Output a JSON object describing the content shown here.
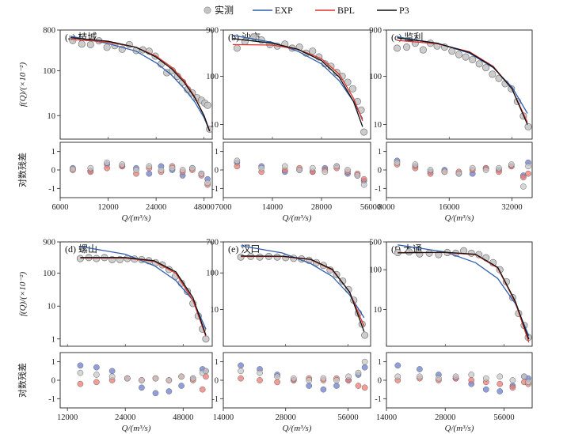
{
  "legend": {
    "items": [
      {
        "label": "实测",
        "color": "#b9b9b9",
        "kind": "marker"
      },
      {
        "label": "EXP",
        "color": "#2f5fae",
        "kind": "line"
      },
      {
        "label": "BPL",
        "color": "#e0302a",
        "kind": "line"
      },
      {
        "label": "P3",
        "color": "#111111",
        "kind": "line"
      }
    ]
  },
  "axis_labels": {
    "top_ylabel": "f(Q)/(×10⁻²)",
    "bottom_ylabel": "对数残差",
    "xlabel": "Q/(m³/s)"
  },
  "colors": {
    "observed": "#c4c4c4",
    "exp": "#2f5fae",
    "bpl": "#e0302a",
    "p3": "#111111",
    "resid_exp": "#6b7fcf",
    "resid_bpl": "#ef7a72",
    "resid_p3": "#c8c8c8"
  },
  "chart_data": [
    {
      "type": "scatter",
      "title": "(a) 枝城",
      "x_ticks": [
        "6000",
        "12000",
        "24000",
        "48000"
      ],
      "y_ticks": [
        "800",
        "100",
        "10"
      ],
      "resid_ticks": [
        "1",
        "0",
        "-1"
      ],
      "xlim": [
        6000,
        54000
      ],
      "ylim": [
        3,
        800
      ],
      "resid_ylim": [
        -1.5,
        1.5
      ],
      "observed": {
        "x": [
          7200,
          8200,
          9300,
          10500,
          11800,
          13200,
          14700,
          16300,
          18000,
          19800,
          21700,
          23700,
          25800,
          28000,
          30300,
          32700,
          35200,
          37800,
          40500,
          43300,
          46200,
          48500,
          50500,
          52000
        ],
        "y": [
          470,
          390,
          380,
          460,
          330,
          360,
          300,
          380,
          280,
          290,
          270,
          210,
          140,
          90,
          100,
          75,
          55,
          38,
          32,
          25,
          22,
          19,
          17,
          5
        ]
      },
      "fits": {
        "EXP": {
          "x": [
            7000,
            12000,
            18000,
            24000,
            30000,
            36000,
            42000,
            48000,
            52000
          ],
          "y": [
            580,
            400,
            270,
            150,
            80,
            40,
            20,
            9,
            4.5
          ]
        },
        "BPL": {
          "x": [
            7000,
            12000,
            18000,
            24000,
            30000,
            36000,
            42000,
            48000,
            52000
          ],
          "y": [
            500,
            430,
            330,
            210,
            120,
            60,
            26,
            10,
            4.6
          ]
        },
        "P3": {
          "x": [
            7000,
            12000,
            18000,
            24000,
            30000,
            36000,
            42000,
            48000,
            52000
          ],
          "y": [
            540,
            450,
            330,
            200,
            110,
            55,
            25,
            10,
            4.5
          ]
        }
      },
      "residuals": {
        "x": [
          7200,
          9300,
          11800,
          14700,
          18000,
          21700,
          25800,
          30300,
          35200,
          40500,
          46200,
          50500
        ],
        "EXP": [
          0.1,
          -0.05,
          0.3,
          0.2,
          0.1,
          -0.2,
          0.2,
          0.0,
          -0.3,
          0.1,
          -0.2,
          -0.5
        ],
        "BPL": [
          0.0,
          -0.1,
          0.1,
          0.2,
          -0.2,
          0.1,
          -0.1,
          0.2,
          -0.1,
          0.0,
          -0.3,
          -0.8
        ],
        "P3": [
          0.05,
          0.1,
          0.4,
          0.3,
          0.0,
          0.2,
          0.0,
          0.1,
          0.0,
          0.1,
          -0.2,
          -0.7
        ]
      }
    },
    {
      "type": "scatter",
      "title": "(b) 沙市",
      "x_ticks": [
        "7000",
        "14000",
        "28000",
        "56000"
      ],
      "y_ticks": [
        "900",
        "100",
        "10"
      ],
      "resid_ticks": [
        "1",
        "0",
        "-1"
      ],
      "xlim": [
        7000,
        56000
      ],
      "ylim": [
        5,
        900
      ],
      "resid_ylim": [
        -1.5,
        1.5
      ],
      "observed": {
        "x": [
          8500,
          9500,
          10800,
          12000,
          13500,
          15000,
          16700,
          18500,
          20500,
          22500,
          24700,
          27000,
          29400,
          32000,
          34700,
          37500,
          40500,
          43500,
          46500,
          49000,
          51000
        ],
        "y": [
          380,
          520,
          650,
          560,
          450,
          420,
          460,
          380,
          400,
          300,
          330,
          250,
          180,
          160,
          120,
          100,
          75,
          55,
          30,
          20,
          7
        ]
      },
      "fits": {
        "EXP": {
          "x": [
            8000,
            14000,
            20000,
            28000,
            36000,
            44000,
            50000
          ],
          "y": [
            700,
            500,
            330,
            180,
            80,
            30,
            13
          ]
        },
        "BPL": {
          "x": [
            8000,
            14000,
            20000,
            28000,
            36000,
            44000,
            50000
          ],
          "y": [
            450,
            440,
            360,
            230,
            110,
            35,
            12
          ]
        },
        "P3": {
          "x": [
            8000,
            14000,
            20000,
            28000,
            36000,
            44000,
            50000
          ],
          "y": [
            600,
            480,
            360,
            210,
            95,
            30,
            9
          ]
        }
      },
      "residuals": {
        "x": [
          8500,
          12000,
          16700,
          20500,
          24700,
          29400,
          34700,
          40500,
          46500,
          51000
        ],
        "EXP": [
          0.4,
          0.2,
          -0.1,
          0.0,
          -0.1,
          0.1,
          0.2,
          -0.2,
          -0.3,
          -0.6
        ],
        "BPL": [
          0.2,
          -0.1,
          0.0,
          0.1,
          -0.1,
          0.0,
          0.1,
          -0.1,
          -0.2,
          -0.5
        ],
        "P3": [
          0.5,
          0.1,
          0.2,
          0.0,
          0.1,
          -0.1,
          0.2,
          0.0,
          -0.3,
          -0.8
        ]
      }
    },
    {
      "type": "scatter",
      "title": "(c) 监利",
      "x_ticks": [
        "8000",
        "16000",
        "32000"
      ],
      "y_ticks": [
        "900",
        "100",
        "10"
      ],
      "resid_ticks": [
        "1",
        "0",
        "-1"
      ],
      "xlim": [
        8000,
        40000
      ],
      "ylim": [
        5,
        900
      ],
      "resid_ylim": [
        -1.5,
        1.5
      ],
      "observed": {
        "x": [
          9000,
          10000,
          11000,
          12000,
          13000,
          14000,
          15200,
          16500,
          17800,
          19200,
          20700,
          22300,
          24000,
          25800,
          27700,
          29700,
          31800,
          34000,
          36300,
          38300
        ],
        "y": [
          380,
          400,
          480,
          350,
          480,
          420,
          400,
          330,
          280,
          250,
          220,
          180,
          150,
          110,
          90,
          70,
          55,
          30,
          15,
          9
        ]
      },
      "fits": {
        "EXP": {
          "x": [
            9000,
            14000,
            20000,
            26000,
            32000,
            38000
          ],
          "y": [
            650,
            480,
            300,
            150,
            60,
            17
          ]
        },
        "BPL": {
          "x": [
            9000,
            14000,
            20000,
            26000,
            32000,
            38000
          ],
          "y": [
            550,
            470,
            320,
            160,
            55,
            11
          ]
        },
        "P3": {
          "x": [
            9000,
            14000,
            20000,
            26000,
            32000,
            38000
          ],
          "y": [
            620,
            480,
            310,
            155,
            55,
            10
          ]
        }
      },
      "residuals": {
        "x": [
          9000,
          11000,
          13000,
          15200,
          17800,
          20700,
          24000,
          27700,
          31800,
          36300,
          38300
        ],
        "EXP": [
          0.5,
          0.2,
          -0.1,
          0.0,
          -0.2,
          -0.2,
          0.1,
          0.0,
          0.2,
          -0.3,
          0.4
        ],
        "BPL": [
          0.3,
          0.1,
          -0.2,
          -0.1,
          -0.1,
          0.0,
          0.1,
          -0.1,
          0.2,
          -0.4,
          -0.2
        ],
        "P3": [
          0.4,
          0.3,
          0.0,
          -0.1,
          -0.2,
          0.1,
          0.0,
          0.1,
          0.3,
          -0.9,
          0.2
        ]
      }
    },
    {
      "type": "scatter",
      "title": "(d) 螺山",
      "x_ticks": [
        "12000",
        "24000",
        "48000"
      ],
      "y_ticks": [
        "900",
        "100",
        "10",
        "1"
      ],
      "resid_ticks": [
        "1",
        "0",
        "-1"
      ],
      "xlim": [
        11000,
        68000
      ],
      "ylim": [
        0.6,
        900
      ],
      "resid_ylim": [
        -1.5,
        1.5
      ],
      "observed": {
        "x": [
          14000,
          15500,
          17000,
          18700,
          20500,
          22500,
          24600,
          26800,
          29200,
          31800,
          34500,
          37400,
          40500,
          43700,
          47000,
          50500,
          54000,
          57500,
          60500,
          63000
        ],
        "y": [
          280,
          300,
          280,
          300,
          260,
          260,
          280,
          270,
          260,
          240,
          210,
          180,
          130,
          80,
          50,
          28,
          12,
          5,
          2,
          1
        ]
      },
      "fits": {
        "EXP": {
          "x": [
            14000,
            24000,
            34000,
            44000,
            54000,
            63000
          ],
          "y": [
            650,
            380,
            170,
            60,
            15,
            2
          ]
        },
        "BPL": {
          "x": [
            14000,
            24000,
            34000,
            44000,
            54000,
            63000
          ],
          "y": [
            290,
            290,
            230,
            100,
            15,
            1.2
          ]
        },
        "P3": {
          "x": [
            14000,
            24000,
            34000,
            44000,
            54000,
            63000
          ],
          "y": [
            300,
            300,
            240,
            110,
            18,
            1.3
          ]
        }
      },
      "residuals": {
        "x": [
          14000,
          17000,
          20500,
          24600,
          29200,
          34500,
          40500,
          47000,
          54000,
          60500,
          63000
        ],
        "EXP": [
          0.8,
          0.7,
          0.5,
          0.1,
          -0.4,
          -0.7,
          -0.6,
          -0.3,
          0.1,
          0.6,
          0.5
        ],
        "BPL": [
          -0.2,
          -0.1,
          0.0,
          0.1,
          0.0,
          0.1,
          0.0,
          0.2,
          0.0,
          -0.5,
          0.2
        ],
        "P3": [
          0.4,
          0.3,
          0.2,
          0.1,
          0.0,
          0.1,
          0.0,
          0.2,
          0.1,
          0.4,
          0.5
        ]
      }
    },
    {
      "type": "scatter",
      "title": "(e) 汉口",
      "x_ticks": [
        "14000",
        "28000",
        "56000"
      ],
      "y_ticks": [
        "700",
        "100",
        "10"
      ],
      "resid_ticks": [
        "1",
        "0",
        "-1"
      ],
      "xlim": [
        14000,
        72000
      ],
      "ylim": [
        1,
        700
      ],
      "resid_ylim": [
        -1.5,
        1.5
      ],
      "observed": {
        "x": [
          17000,
          19000,
          21000,
          23200,
          25500,
          28000,
          30600,
          33400,
          36300,
          39400,
          42600,
          45900,
          49300,
          52800,
          56300,
          59700,
          62800,
          65500,
          67500
        ],
        "y": [
          270,
          280,
          270,
          280,
          270,
          260,
          250,
          240,
          220,
          190,
          160,
          120,
          90,
          60,
          35,
          18,
          8,
          4,
          2
        ]
      },
      "fits": {
        "EXP": {
          "x": [
            17000,
            27000,
            37000,
            47000,
            57000,
            67000
          ],
          "y": [
            550,
            350,
            180,
            80,
            25,
            6
          ]
        },
        "BPL": {
          "x": [
            17000,
            27000,
            37000,
            47000,
            57000,
            67000
          ],
          "y": [
            280,
            280,
            230,
            120,
            30,
            3.5
          ]
        },
        "P3": {
          "x": [
            17000,
            27000,
            37000,
            47000,
            57000,
            67000
          ],
          "y": [
            290,
            285,
            235,
            125,
            30,
            2.5
          ]
        }
      },
      "residuals": {
        "x": [
          17000,
          21000,
          25500,
          30600,
          36300,
          42600,
          49300,
          56300,
          62800,
          67500
        ],
        "EXP": [
          0.8,
          0.6,
          0.3,
          0.0,
          -0.3,
          -0.5,
          -0.3,
          0.0,
          0.3,
          0.7
        ],
        "BPL": [
          0.1,
          0.0,
          -0.1,
          0.0,
          0.1,
          0.0,
          0.1,
          0.0,
          -0.3,
          -0.4
        ],
        "P3": [
          0.5,
          0.4,
          0.2,
          0.1,
          0.0,
          0.1,
          0.0,
          0.2,
          0.4,
          1.0
        ]
      }
    },
    {
      "type": "scatter",
      "title": "(f) 大通",
      "x_ticks": [
        "14000",
        "28000",
        "56000"
      ],
      "y_ticks": [
        "500",
        "100",
        "10"
      ],
      "resid_ticks": [
        "1",
        "0",
        "-1"
      ],
      "xlim": [
        14000,
        78000
      ],
      "ylim": [
        1.2,
        500
      ],
      "resid_ylim": [
        -1.5,
        1.5
      ],
      "observed": {
        "x": [
          16000,
          18300,
          20700,
          23200,
          25900,
          28700,
          31700,
          34800,
          38100,
          41600,
          45300,
          49200,
          53300,
          57600,
          62000,
          66500,
          71000,
          74500
        ],
        "y": [
          270,
          280,
          250,
          260,
          240,
          270,
          260,
          300,
          260,
          240,
          200,
          150,
          100,
          50,
          20,
          8,
          4,
          2
        ]
      },
      "fits": {
        "EXP": {
          "x": [
            16000,
            28000,
            40000,
            52000,
            64000,
            75000
          ],
          "y": [
            420,
            280,
            150,
            60,
            14,
            2.2
          ]
        },
        "BPL": {
          "x": [
            16000,
            28000,
            40000,
            52000,
            64000,
            75000
          ],
          "y": [
            270,
            270,
            240,
            110,
            15,
            1.5
          ]
        },
        "P3": {
          "x": [
            16000,
            28000,
            40000,
            52000,
            64000,
            75000
          ],
          "y": [
            265,
            275,
            245,
            115,
            16,
            1.8
          ]
        }
      },
      "residuals": {
        "x": [
          16000,
          20700,
          25900,
          31700,
          38100,
          45300,
          53300,
          62000,
          71000,
          74500
        ],
        "EXP": [
          0.8,
          0.6,
          0.3,
          0.1,
          -0.2,
          -0.5,
          -0.6,
          -0.3,
          0.2,
          0.1
        ],
        "BPL": [
          0.0,
          0.1,
          0.0,
          0.1,
          0.0,
          -0.1,
          -0.2,
          -0.4,
          -0.1,
          -0.2
        ],
        "P3": [
          0.2,
          0.2,
          0.1,
          0.2,
          0.3,
          0.1,
          0.2,
          0.0,
          0.2,
          -0.1
        ]
      }
    }
  ]
}
